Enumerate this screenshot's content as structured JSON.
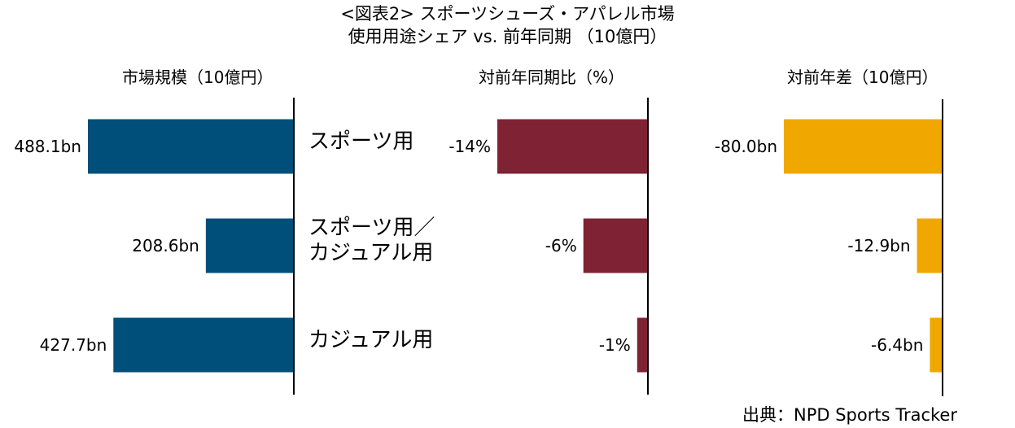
{
  "title": "<図表2> スポーツシューズ・アパレル市場",
  "subtitle": "使用用途シェア vs. 前年同期 （10億円）",
  "source": "出典：NPD Sports Tracker",
  "categories": [
    [
      "スポーツ用"
    ],
    [
      "スポーツ用／",
      "カジュアル用"
    ],
    [
      "カジュアル用"
    ]
  ],
  "colors": {
    "market": "#004f7a",
    "yoy_pct": "#7f2334",
    "yoy_diff": "#f0a800"
  },
  "chart_data": [
    {
      "type": "bar",
      "orientation": "horizontal",
      "title": "市場規模（10億円）",
      "categories": [
        "スポーツ用",
        "スポーツ用／カジュアル用",
        "カジュアル用"
      ],
      "values": [
        488.1,
        208.6,
        427.7
      ],
      "data_labels": [
        "488.1bn",
        "208.6bn",
        "427.7bn"
      ],
      "xlim": [
        0,
        500
      ]
    },
    {
      "type": "bar",
      "orientation": "horizontal",
      "title": "対前年同期比（%）",
      "categories": [
        "スポーツ用",
        "スポーツ用／カジュアル用",
        "カジュアル用"
      ],
      "values": [
        -14,
        -6,
        -1
      ],
      "data_labels": [
        "-14%",
        "-6%",
        "-1%"
      ],
      "xlim": [
        -15,
        0
      ]
    },
    {
      "type": "bar",
      "orientation": "horizontal",
      "title": "対前年差（10億円）",
      "categories": [
        "スポーツ用",
        "スポーツ用／カジュアル用",
        "カジュアル用"
      ],
      "values": [
        -80.0,
        -12.9,
        -6.4
      ],
      "data_labels": [
        "-80.0bn",
        "-12.9bn",
        "-6.4bn"
      ],
      "xlim": [
        -90,
        0
      ]
    }
  ]
}
